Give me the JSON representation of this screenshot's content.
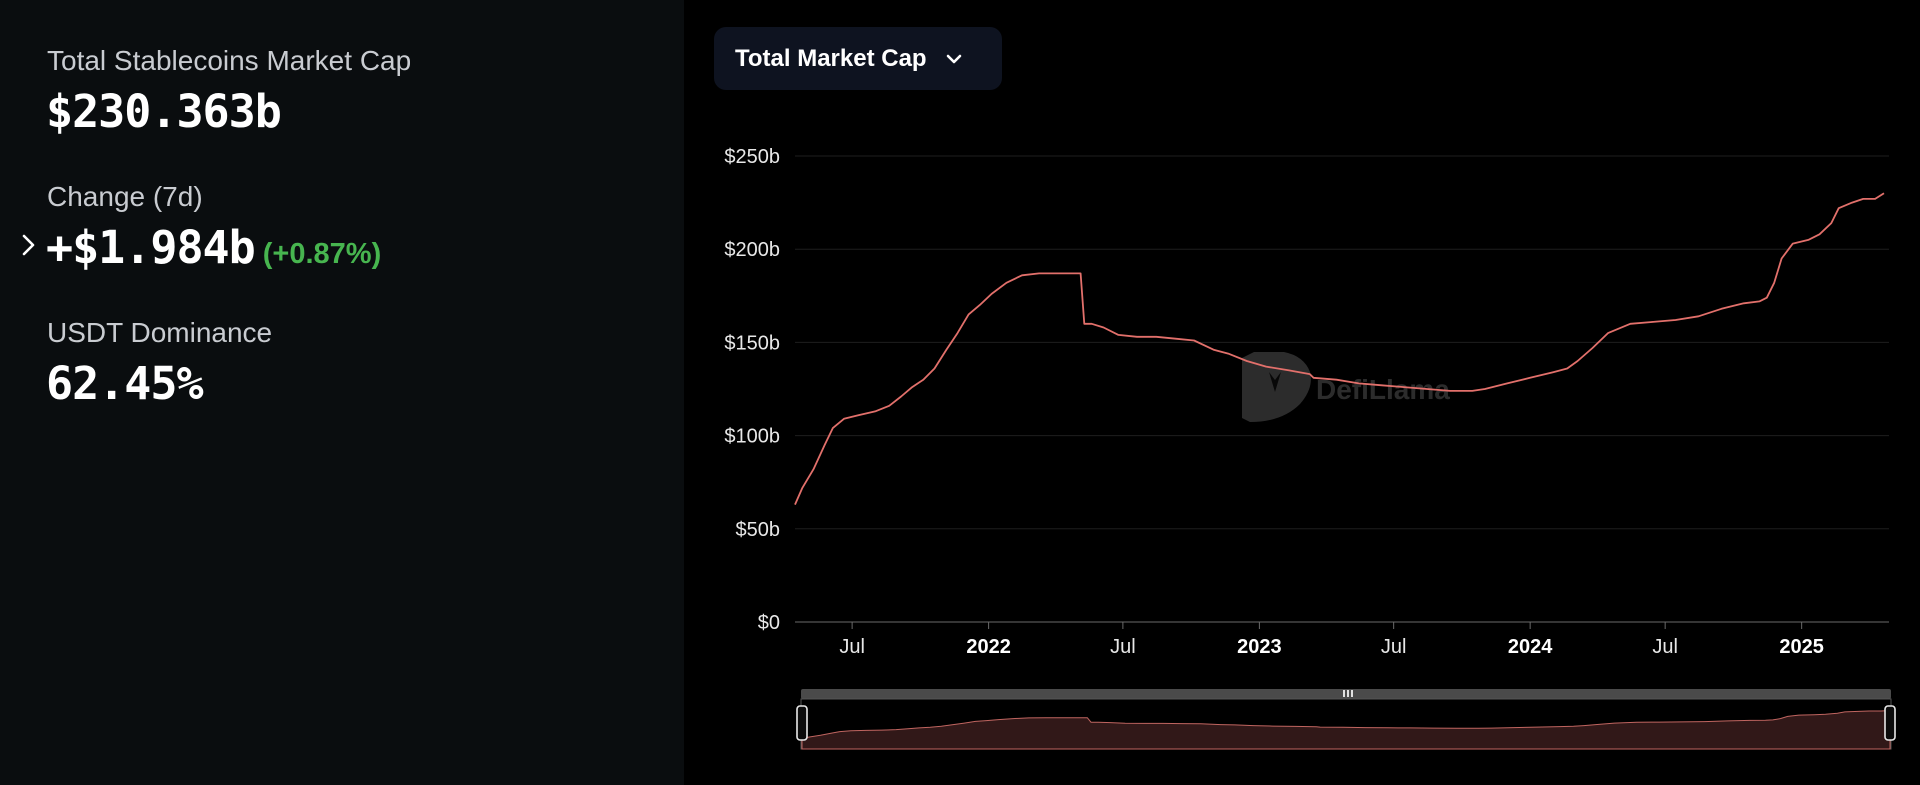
{
  "stats": {
    "total_label": "Total Stablecoins Market Cap",
    "total_value": "$230.363b",
    "change_label": "Change (7d)",
    "change_value": "+$1.984b",
    "change_pct": "(+0.87%)",
    "dominance_label": "USDT Dominance",
    "dominance_value": "62.45%"
  },
  "selector": {
    "label": "Total Market Cap",
    "icon": "chevron-down-icon"
  },
  "watermark": "DefiLlama",
  "colors": {
    "line": "#e2706b",
    "positive": "#47b54f",
    "panel_bg": "#0a0d0f",
    "chart_bg": "#000000",
    "selector_bg": "#0e1320"
  },
  "chart_data": {
    "type": "line",
    "title": "",
    "xlabel": "",
    "ylabel": "",
    "ylim": [
      0,
      250
    ],
    "y_unit": "billion USD",
    "y_ticks": [
      "$0",
      "$50b",
      "$100b",
      "$150b",
      "$200b",
      "$250b"
    ],
    "x_range": [
      "2021-04-15",
      "2025-04-22"
    ],
    "x_ticks": [
      {
        "label": "Jul",
        "date": "2021-07-01",
        "bold": false
      },
      {
        "label": "2022",
        "date": "2022-01-01",
        "bold": true
      },
      {
        "label": "Jul",
        "date": "2022-07-01",
        "bold": false
      },
      {
        "label": "2023",
        "date": "2023-01-01",
        "bold": true
      },
      {
        "label": "Jul",
        "date": "2023-07-01",
        "bold": false
      },
      {
        "label": "2024",
        "date": "2024-01-01",
        "bold": true
      },
      {
        "label": "Jul",
        "date": "2024-07-01",
        "bold": false
      },
      {
        "label": "2025",
        "date": "2025-01-01",
        "bold": true
      }
    ],
    "grid": true,
    "series": [
      {
        "x": [
          "2021-04-15",
          "2021-04-25",
          "2021-05-10",
          "2021-05-25",
          "2021-06-05",
          "2021-06-20",
          "2021-07-10",
          "2021-08-01",
          "2021-08-20",
          "2021-09-05",
          "2021-09-20",
          "2021-10-05",
          "2021-10-20",
          "2021-11-05",
          "2021-11-20",
          "2021-12-05",
          "2021-12-20",
          "2022-01-05",
          "2022-01-25",
          "2022-02-15",
          "2022-03-10",
          "2022-04-01",
          "2022-04-20",
          "2022-05-05",
          "2022-05-10",
          "2022-05-20",
          "2022-06-05",
          "2022-06-25",
          "2022-07-20",
          "2022-08-15",
          "2022-09-10",
          "2022-10-05",
          "2022-11-01",
          "2022-11-20",
          "2022-12-15",
          "2023-01-10",
          "2023-02-10",
          "2023-03-10",
          "2023-03-15",
          "2023-04-15",
          "2023-05-15",
          "2023-06-15",
          "2023-07-15",
          "2023-08-15",
          "2023-09-15",
          "2023-10-15",
          "2023-11-01",
          "2023-12-01",
          "2024-01-01",
          "2024-02-01",
          "2024-02-20",
          "2024-03-05",
          "2024-03-25",
          "2024-04-15",
          "2024-05-15",
          "2024-06-15",
          "2024-07-15",
          "2024-08-15",
          "2024-09-15",
          "2024-10-15",
          "2024-11-05",
          "2024-11-15",
          "2024-11-25",
          "2024-12-05",
          "2024-12-20",
          "2025-01-10",
          "2025-01-25",
          "2025-02-10",
          "2025-02-20",
          "2025-03-10",
          "2025-03-25",
          "2025-04-10",
          "2025-04-22"
        ],
        "y": [
          63,
          72,
          82,
          95,
          104,
          109,
          111,
          113,
          116,
          121,
          126,
          130,
          136,
          146,
          155,
          165,
          170,
          176,
          182,
          186,
          187,
          187,
          187,
          187,
          160,
          160,
          158,
          154,
          153,
          153,
          152,
          151,
          146,
          144,
          140,
          137,
          135,
          133,
          131,
          130,
          128,
          127,
          126,
          125,
          124,
          124,
          125,
          128,
          131,
          134,
          136,
          140,
          147,
          155,
          160,
          161,
          162,
          164,
          168,
          171,
          172,
          174,
          182,
          195,
          203,
          205,
          208,
          214,
          222,
          225,
          227,
          227,
          230
        ]
      }
    ]
  }
}
